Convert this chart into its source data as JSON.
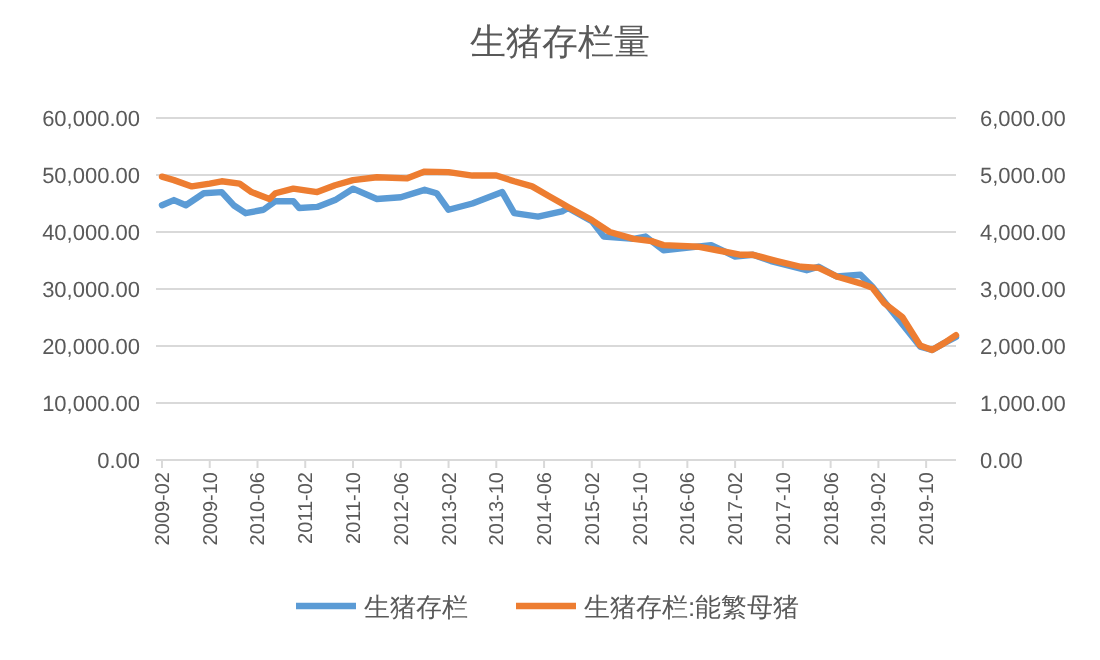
{
  "chart_data": {
    "type": "line",
    "title": "生猪存栏量",
    "xlim": [
      "2009-01",
      "2020-03"
    ],
    "xticks": [
      "2009-02",
      "2009-10",
      "2010-06",
      "2011-02",
      "2011-10",
      "2012-06",
      "2013-02",
      "2013-10",
      "2014-06",
      "2015-02",
      "2015-10",
      "2016-06",
      "2017-02",
      "2017-10",
      "2018-06",
      "2019-02",
      "2019-10"
    ],
    "ylim": [
      0,
      60000
    ],
    "yticks": [
      {
        "value": 0,
        "label": "0.00"
      },
      {
        "value": 10000,
        "label": "10,000.00"
      },
      {
        "value": 20000,
        "label": "20,000.00"
      },
      {
        "value": 30000,
        "label": "30,000.00"
      },
      {
        "value": 40000,
        "label": "40,000.00"
      },
      {
        "value": 50000,
        "label": "50,000.00"
      },
      {
        "value": 60000,
        "label": "60,000.00"
      }
    ],
    "y2lim": [
      0,
      6000
    ],
    "y2ticks": [
      {
        "value": 0,
        "label": "0.00"
      },
      {
        "value": 1000,
        "label": "1,000.00"
      },
      {
        "value": 2000,
        "label": "2,000.00"
      },
      {
        "value": 3000,
        "label": "3,000.00"
      },
      {
        "value": 4000,
        "label": "4,000.00"
      },
      {
        "value": 5000,
        "label": "5,000.00"
      },
      {
        "value": 6000,
        "label": "6,000.00"
      }
    ],
    "grid": "y",
    "legend": "bottom",
    "series": [
      {
        "name": "生猪存栏",
        "color": "#5b9bd5",
        "x": [
          "2009-02",
          "2009-04",
          "2009-06",
          "2009-09",
          "2009-12",
          "2010-02",
          "2010-04",
          "2010-07",
          "2010-09",
          "2010-12",
          "2011-01",
          "2011-04",
          "2011-07",
          "2011-10",
          "2012-02",
          "2012-06",
          "2012-10",
          "2012-12",
          "2013-02",
          "2013-06",
          "2013-11",
          "2014-01",
          "2014-05",
          "2014-09",
          "2014-10",
          "2015-02",
          "2015-04",
          "2015-09",
          "2015-11",
          "2016-02",
          "2016-10",
          "2017-02",
          "2017-05",
          "2017-08",
          "2018-02",
          "2018-04",
          "2018-07",
          "2018-11",
          "2019-01",
          "2019-09",
          "2019-11",
          "2020-01",
          "2020-03"
        ],
        "values": [
          44700,
          45600,
          44700,
          46800,
          47000,
          44700,
          43300,
          43900,
          45400,
          45400,
          44200,
          44400,
          45600,
          47600,
          45800,
          46100,
          47400,
          46800,
          43900,
          45000,
          47000,
          43300,
          42700,
          43600,
          44200,
          41900,
          39200,
          38800,
          39200,
          36800,
          37700,
          35700,
          36000,
          34900,
          33300,
          33900,
          32200,
          32500,
          30400,
          19900,
          19300,
          20500,
          21600
        ]
      },
      {
        "name": "生猪存栏:能繁母猪",
        "color": "#ed7d31",
        "axis": "y2",
        "x": [
          "2009-02",
          "2009-04",
          "2009-07",
          "2009-10",
          "2009-12",
          "2010-03",
          "2010-05",
          "2010-08",
          "2010-09",
          "2010-12",
          "2011-04",
          "2011-07",
          "2011-10",
          "2012-02",
          "2012-07",
          "2012-10",
          "2013-02",
          "2013-06",
          "2013-10",
          "2014-01",
          "2014-04",
          "2014-07",
          "2014-09",
          "2014-10",
          "2015-02",
          "2015-05",
          "2015-09",
          "2015-12",
          "2016-02",
          "2016-08",
          "2016-11",
          "2017-03",
          "2017-05",
          "2017-09",
          "2018-01",
          "2018-04",
          "2018-07",
          "2018-11",
          "2019-01",
          "2019-03",
          "2019-06",
          "2019-09",
          "2019-11",
          "2020-01",
          "2020-03"
        ],
        "values": [
          4970,
          4910,
          4800,
          4850,
          4890,
          4850,
          4700,
          4580,
          4680,
          4760,
          4700,
          4820,
          4910,
          4960,
          4940,
          5060,
          5050,
          4990,
          4990,
          4890,
          4800,
          4620,
          4500,
          4440,
          4210,
          4000,
          3880,
          3840,
          3770,
          3740,
          3680,
          3600,
          3600,
          3490,
          3390,
          3370,
          3220,
          3100,
          3020,
          2750,
          2510,
          2010,
          1930,
          2050,
          2190
        ]
      }
    ]
  }
}
